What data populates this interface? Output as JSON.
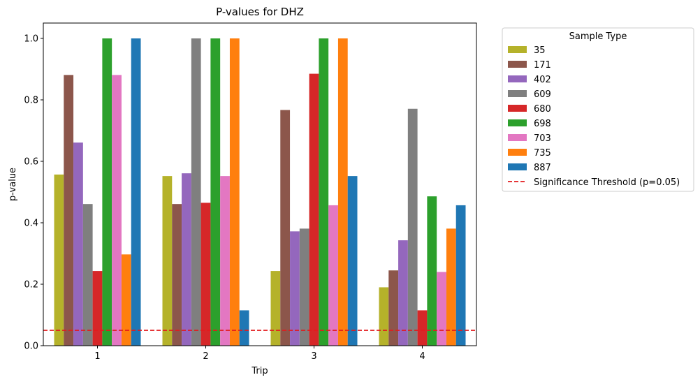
{
  "chart_data": {
    "type": "bar",
    "title": "P-values for DHZ",
    "xlabel": "Trip",
    "ylabel": "p-value",
    "categories": [
      "1",
      "2",
      "3",
      "4"
    ],
    "ylim": [
      0,
      1.05
    ],
    "yticks": [
      "0.0",
      "0.2",
      "0.4",
      "0.6",
      "0.8",
      "1.0"
    ],
    "grid": false,
    "legend": {
      "title": "Sample Type",
      "placement": "outside-right"
    },
    "series": [
      {
        "name": "35",
        "color": "#b5b22a",
        "values": [
          0.557,
          0.552,
          0.243,
          0.19
        ]
      },
      {
        "name": "171",
        "color": "#8c564b",
        "values": [
          0.881,
          0.461,
          0.767,
          0.245
        ]
      },
      {
        "name": "402",
        "color": "#9467bd",
        "values": [
          0.661,
          0.561,
          0.372,
          0.343
        ]
      },
      {
        "name": "609",
        "color": "#7f7f7f",
        "values": [
          0.461,
          1.0,
          0.381,
          0.771
        ]
      },
      {
        "name": "680",
        "color": "#d62728",
        "values": [
          0.243,
          0.465,
          0.885,
          0.115
        ]
      },
      {
        "name": "698",
        "color": "#2ca02c",
        "values": [
          1.0,
          1.0,
          1.0,
          0.486
        ]
      },
      {
        "name": "703",
        "color": "#e377c2",
        "values": [
          0.881,
          0.552,
          0.457,
          0.24
        ]
      },
      {
        "name": "735",
        "color": "#ff7f0e",
        "values": [
          0.297,
          1.0,
          1.0,
          0.381
        ]
      },
      {
        "name": "887",
        "color": "#1f77b4",
        "values": [
          1.0,
          0.115,
          0.552,
          0.457
        ]
      }
    ],
    "threshold": {
      "label": "Significance Threshold (p=0.05)",
      "value": 0.05,
      "color": "#e31a1c"
    }
  }
}
